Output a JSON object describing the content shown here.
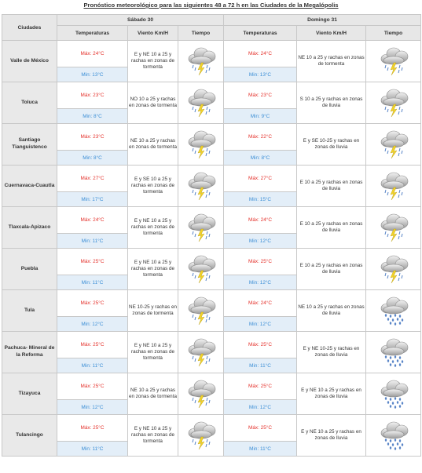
{
  "title": "Pronóstico meteorológico para las siguientes 48 a 72 h en las Ciudades de la Megalópolis",
  "header": {
    "cities_label": "Ciudades",
    "day1": "Sábado 30",
    "day2": "Domingo 31",
    "temp_label": "Temperaturas",
    "wind_label": "Viento Km/H",
    "weather_label": "Tiempo"
  },
  "rows": [
    {
      "city": "Valle de México",
      "d1_max": "Máx: 24°C",
      "d1_min": "Min: 13°C",
      "d1_wind": "E y NE 10 a 25 y rachas en zonas de tormenta",
      "d1_icon": "storm-icon",
      "d2_max": "Máx: 24°C",
      "d2_min": "Min: 13°C",
      "d2_wind": "NE 10 a 25 y rachas en zonas de tormenta",
      "d2_icon": "storm-icon"
    },
    {
      "city": "Toluca",
      "d1_max": "Máx: 23°C",
      "d1_min": "Min: 8°C",
      "d1_wind": "NO 10 a 25 y rachas en zonas de tormenta",
      "d1_icon": "storm-icon",
      "d2_max": "Máx: 23°C",
      "d2_min": "Min: 9°C",
      "d2_wind": "S 10 a 25 y rachas en zonas de lluvia",
      "d2_icon": "storm-icon"
    },
    {
      "city": "Santiago Tianguistenco",
      "d1_max": "Máx: 23°C",
      "d1_min": "Min: 8°C",
      "d1_wind": "NE 10 a 25 y rachas en zonas de tormenta",
      "d1_icon": "storm-icon",
      "d2_max": "Máx: 22°C",
      "d2_min": "Min: 8°C",
      "d2_wind": "E y SE 10-25 y rachas en zonas de lluvia",
      "d2_icon": "storm-icon"
    },
    {
      "city": "Cuernavaca-Cuautla",
      "d1_max": "Máx: 27°C",
      "d1_min": "Min: 17°C",
      "d1_wind": "E y SE 10 a 25 y rachas en zonas de tormenta",
      "d1_icon": "storm-icon",
      "d2_max": "Máx: 27°C",
      "d2_min": "Min: 15°C",
      "d2_wind": "E 10 a 25 y rachas en zonas de lluvia",
      "d2_icon": "storm-icon"
    },
    {
      "city": "Tlaxcala-Apizaco",
      "d1_max": "Máx: 24°C",
      "d1_min": "Min: 11°C",
      "d1_wind": "E y NE 10 a 25 y rachas en zonas de tormenta",
      "d1_icon": "storm-icon",
      "d2_max": "Máx: 24°C",
      "d2_min": "Min: 12°C",
      "d2_wind": "E 10 a 25 y rachas en zonas de lluvia",
      "d2_icon": "storm-icon"
    },
    {
      "city": "Puebla",
      "d1_max": "Máx: 25°C",
      "d1_min": "Min: 11°C",
      "d1_wind": "E y NE 10 a 25 y rachas en zonas de tormenta",
      "d1_icon": "storm-icon",
      "d2_max": "Máx: 25°C",
      "d2_min": "Min: 12°C",
      "d2_wind": "E 10 a 25 y rachas en zonas de lluvia",
      "d2_icon": "storm-icon"
    },
    {
      "city": "Tula",
      "d1_max": "Máx: 25°C",
      "d1_min": "Min: 12°C",
      "d1_wind": "NE 10-25 y rachas en zonas de tormenta",
      "d1_icon": "storm-icon",
      "d2_max": "Máx: 24°C",
      "d2_min": "Min: 12°C",
      "d2_wind": "NE 10 a 25 y rachas en zonas de lluvia",
      "d2_icon": "rain-icon"
    },
    {
      "city": "Pachuca- Mineral de la Reforma",
      "d1_max": "Máx: 25°C",
      "d1_min": "Min: 11°C",
      "d1_wind": "E y NE 10 a 25 y rachas en zonas de tormenta",
      "d1_icon": "storm-icon",
      "d2_max": "Máx: 25°C",
      "d2_min": "Min: 11°C",
      "d2_wind": "E y NE 10-25 y rachas en zonas de lluvia",
      "d2_icon": "rain-icon"
    },
    {
      "city": "Tizayuca",
      "d1_max": "Máx: 25°C",
      "d1_min": "Min: 12°C",
      "d1_wind": "NE 10 a 25 y rachas en zonas de tormenta",
      "d1_icon": "storm-icon",
      "d2_max": "Máx: 25°C",
      "d2_min": "Min: 12°C",
      "d2_wind": "E y NE 10 a 25 y rachas en zonas de lluvia",
      "d2_icon": "rain-icon"
    },
    {
      "city": "Tulancingo",
      "d1_max": "Máx: 25°C",
      "d1_min": "Min: 11°C",
      "d1_wind": "E y NE 10 a 25 y rachas en zonas de tormenta",
      "d1_icon": "storm-icon",
      "d2_max": "Máx: 25°C",
      "d2_min": "Min: 11°C",
      "d2_wind": "E y NE 10 a 25 y rachas en zonas de lluvia",
      "d2_icon": "rain-icon"
    }
  ],
  "colors": {
    "max": "#e4312b",
    "min": "#3d8fd6",
    "header_bg": "#e7e7e7",
    "min_bg": "#e3eef8"
  }
}
